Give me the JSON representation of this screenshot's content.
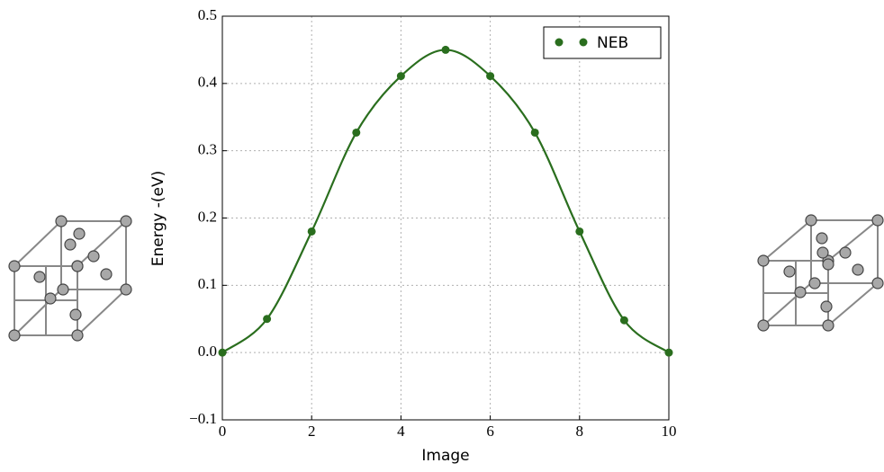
{
  "chart_data": {
    "type": "line",
    "xlabel": "Image",
    "ylabel": "Energy -(eV)",
    "x": [
      0,
      1,
      2,
      3,
      4,
      5,
      6,
      7,
      8,
      9,
      10
    ],
    "series": [
      {
        "name": "NEB",
        "color": "#2a6e1e",
        "values": [
          0,
          0.05,
          0.18,
          0.327,
          0.411,
          0.45,
          0.411,
          0.327,
          0.18,
          0.048,
          0
        ]
      }
    ],
    "xlim": [
      0,
      10
    ],
    "xticks": [
      0,
      2,
      4,
      6,
      8,
      10
    ],
    "ylim": [
      -0.1,
      0.5
    ],
    "yticks": [
      {
        "value": -0.1,
        "label": "−0.1"
      },
      {
        "value": 0,
        "label": "0.0"
      },
      0.1,
      0.2,
      0.3,
      0.4,
      0.5
    ],
    "grid": true,
    "legend": "upper right"
  }
}
